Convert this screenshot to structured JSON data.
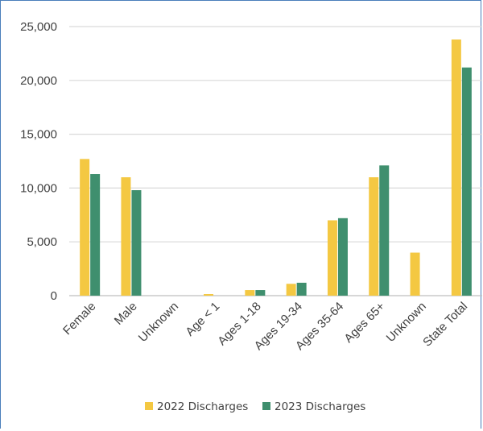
{
  "chart_data": {
    "type": "bar",
    "title": "",
    "xlabel": "",
    "ylabel": "",
    "ylim": [
      0,
      25000
    ],
    "yticks": [
      0,
      5000,
      10000,
      15000,
      20000,
      25000
    ],
    "ytick_labels": [
      "0",
      "5,000",
      "10,000",
      "15,000",
      "20,000",
      "25,000"
    ],
    "grid": true,
    "legend_position": "bottom",
    "categories": [
      "Female",
      "Male",
      "Unknown",
      "Age < 1",
      "Ages 1-18",
      "Ages 19-34",
      "Ages 35-64",
      "Ages 65+",
      "Unknown",
      "State Total"
    ],
    "series": [
      {
        "name": "2022 Discharges",
        "color": "#f4c842",
        "values": [
          12700,
          11000,
          0,
          150,
          520,
          1100,
          7000,
          11000,
          4000,
          23800
        ]
      },
      {
        "name": "2023 Discharges",
        "color": "#3f8f6e",
        "values": [
          11300,
          9800,
          0,
          0,
          520,
          1200,
          7200,
          12100,
          0,
          21200
        ]
      }
    ]
  }
}
